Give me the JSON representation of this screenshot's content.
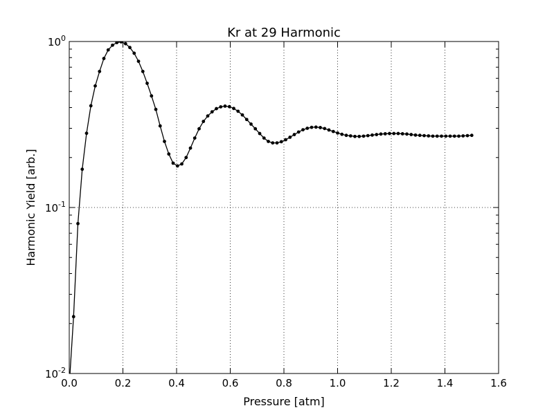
{
  "chart_data": {
    "type": "line",
    "title": "Kr at 29 Harmonic",
    "xlabel": "Pressure [atm]",
    "ylabel": "Harmonic Yield [arb.]",
    "xlim": [
      0,
      1.6
    ],
    "ylim": [
      0.01,
      1
    ],
    "yscale": "log",
    "grid": true,
    "x_ticks": [
      "0.0",
      "0.2",
      "0.4",
      "0.6",
      "0.8",
      "1.0",
      "1.2",
      "1.4",
      "1.6"
    ],
    "y_ticks": [
      {
        "value": 0.01,
        "base": "10",
        "exp": "-2"
      },
      {
        "value": 0.1,
        "base": "10",
        "exp": "-1"
      },
      {
        "value": 1,
        "base": "10",
        "exp": "0"
      }
    ],
    "series": [
      {
        "color": "#000000",
        "marker": "circle",
        "x": [
          0.0,
          0.0161,
          0.0323,
          0.0484,
          0.0645,
          0.0806,
          0.0968,
          0.1129,
          0.129,
          0.1452,
          0.1613,
          0.1774,
          0.1935,
          0.2097,
          0.2258,
          0.2419,
          0.2581,
          0.2742,
          0.2903,
          0.3065,
          0.3226,
          0.3387,
          0.3548,
          0.371,
          0.3871,
          0.4032,
          0.4194,
          0.4355,
          0.4516,
          0.4677,
          0.4839,
          0.5,
          0.5161,
          0.5323,
          0.5484,
          0.5645,
          0.5806,
          0.5968,
          0.6129,
          0.629,
          0.6452,
          0.6613,
          0.6774,
          0.6935,
          0.7097,
          0.7258,
          0.7419,
          0.7581,
          0.7742,
          0.7903,
          0.8065,
          0.8226,
          0.8387,
          0.8548,
          0.871,
          0.8871,
          0.9032,
          0.9194,
          0.9355,
          0.9516,
          0.9677,
          0.9839,
          1.0,
          1.0161,
          1.0323,
          1.0484,
          1.0645,
          1.0806,
          1.0968,
          1.1129,
          1.129,
          1.1452,
          1.1613,
          1.1774,
          1.1935,
          1.2097,
          1.2258,
          1.2419,
          1.2581,
          1.2742,
          1.2903,
          1.3065,
          1.3226,
          1.3387,
          1.3548,
          1.371,
          1.3871,
          1.4032,
          1.4194,
          1.4355,
          1.4516,
          1.4677,
          1.4839,
          1.5
        ],
        "y": [
          0.0085,
          0.022,
          0.08,
          0.17,
          0.28,
          0.41,
          0.54,
          0.66,
          0.79,
          0.89,
          0.95,
          0.985,
          0.995,
          0.97,
          0.92,
          0.85,
          0.76,
          0.66,
          0.56,
          0.47,
          0.39,
          0.31,
          0.25,
          0.21,
          0.185,
          0.178,
          0.183,
          0.2,
          0.228,
          0.262,
          0.298,
          0.33,
          0.356,
          0.377,
          0.394,
          0.404,
          0.408,
          0.405,
          0.395,
          0.38,
          0.361,
          0.339,
          0.318,
          0.298,
          0.279,
          0.262,
          0.25,
          0.245,
          0.245,
          0.249,
          0.256,
          0.265,
          0.275,
          0.285,
          0.294,
          0.3,
          0.304,
          0.305,
          0.303,
          0.299,
          0.293,
          0.287,
          0.281,
          0.276,
          0.272,
          0.27,
          0.268,
          0.268,
          0.269,
          0.271,
          0.273,
          0.275,
          0.277,
          0.278,
          0.279,
          0.279,
          0.279,
          0.278,
          0.277,
          0.275,
          0.273,
          0.272,
          0.271,
          0.27,
          0.269,
          0.269,
          0.269,
          0.269,
          0.269,
          0.269,
          0.269,
          0.27,
          0.271,
          0.272
        ]
      }
    ]
  }
}
